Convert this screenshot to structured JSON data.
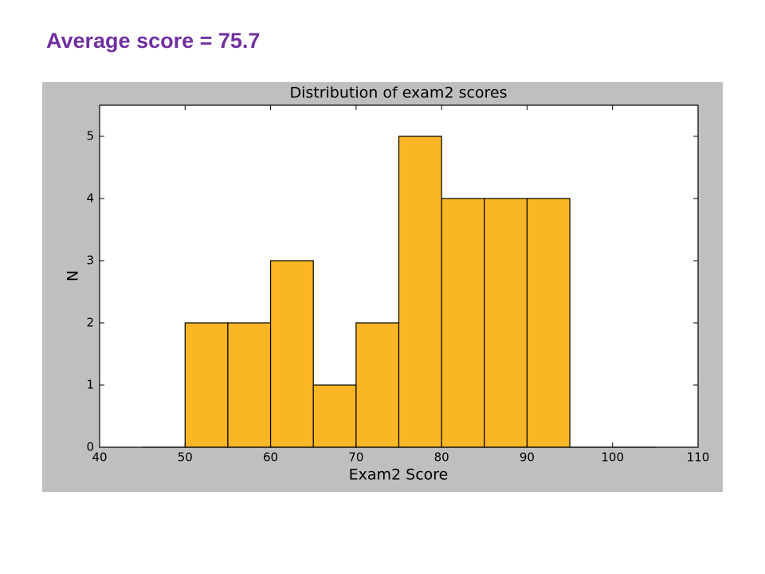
{
  "heading": "Average score = 75.7",
  "chart_data": {
    "type": "histogram",
    "title": "Distribution of exam2 scores",
    "x_label": "Exam2 Score",
    "y_label": "N",
    "bins": [
      45,
      50,
      55,
      60,
      65,
      70,
      75,
      80,
      85,
      90,
      95,
      100,
      105
    ],
    "counts": [
      0,
      2,
      2,
      3,
      1,
      2,
      5,
      4,
      4,
      4,
      0,
      0
    ],
    "color": "#fbb626",
    "xlim": [
      40,
      110
    ],
    "xticks": [
      40,
      50,
      60,
      70,
      80,
      90,
      100,
      110
    ],
    "ylim": [
      0,
      5.5
    ],
    "yticks": [
      0,
      1,
      2,
      3,
      4,
      5
    ],
    "grid": false
  }
}
